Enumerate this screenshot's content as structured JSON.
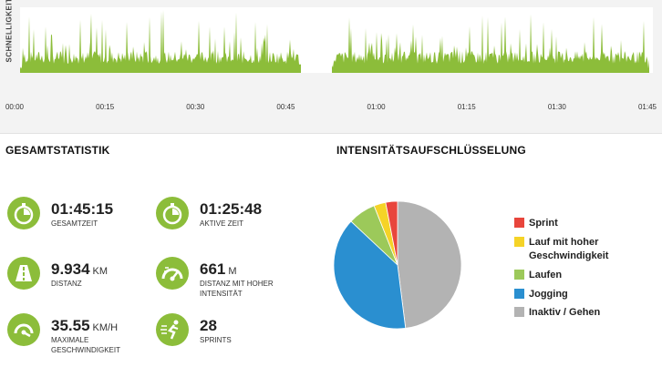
{
  "speed_chart": {
    "ylabel": "SCHNELLIGKEIT",
    "x_ticks": [
      "00:00",
      "00:15",
      "00:30",
      "00:45",
      "01:00",
      "01:15",
      "01:30",
      "01:45"
    ],
    "colors": {
      "fill": "#8cbd3a"
    }
  },
  "overall": {
    "title": "GESAMTSTATISTIK",
    "stats": [
      {
        "value": "01:45:15",
        "unit": "",
        "label": "GESAMTZEIT",
        "icon": "stopwatch-icon"
      },
      {
        "value": "01:25:48",
        "unit": "",
        "label": "AKTIVE ZEIT",
        "icon": "stopwatch-icon"
      },
      {
        "value": "9.934",
        "unit": "KM",
        "label": "DISTANZ",
        "icon": "road-icon"
      },
      {
        "value": "661",
        "unit": "M",
        "label": "DISTANZ MIT HOHER INTENSITÄT",
        "icon": "speedometer-icon"
      },
      {
        "value": "35.55",
        "unit": "KM/H",
        "label": "MAXIMALE GESCHWINDIGKEIT",
        "icon": "gauge-icon"
      },
      {
        "value": "28",
        "unit": "",
        "label": "SPRINTS",
        "icon": "sprinter-icon"
      }
    ]
  },
  "intensity": {
    "title": "INTENSITÄTSAUFSCHLÜSSELUNG",
    "legend": [
      {
        "label": "Sprint",
        "color": "#e8453c"
      },
      {
        "label": "Lauf mit hoher Geschwindigkeit",
        "color": "#f5d327"
      },
      {
        "label": "Laufen",
        "color": "#9cc95a"
      },
      {
        "label": "Jogging",
        "color": "#2a8fd0"
      },
      {
        "label": "Inaktiv / Gehen",
        "color": "#b3b3b3"
      }
    ]
  },
  "chart_data": [
    {
      "type": "area",
      "ylabel": "SCHNELLIGKEIT",
      "x_ticks": [
        "00:00",
        "00:15",
        "00:30",
        "00:45",
        "01:00",
        "01:15",
        "01:30",
        "01:45"
      ],
      "xlim": [
        "00:00",
        "01:45"
      ],
      "gap": [
        "00:47",
        "00:51"
      ],
      "grid": false
    },
    {
      "type": "pie",
      "categories": [
        "Inaktiv / Gehen",
        "Jogging",
        "Laufen",
        "Lauf mit hoher Geschwindigkeit",
        "Sprint"
      ],
      "values": [
        48,
        39,
        7,
        3,
        3
      ],
      "colors": [
        "#b3b3b3",
        "#2a8fd0",
        "#9cc95a",
        "#f5d327",
        "#e8453c"
      ],
      "legend_position": "right"
    }
  ]
}
